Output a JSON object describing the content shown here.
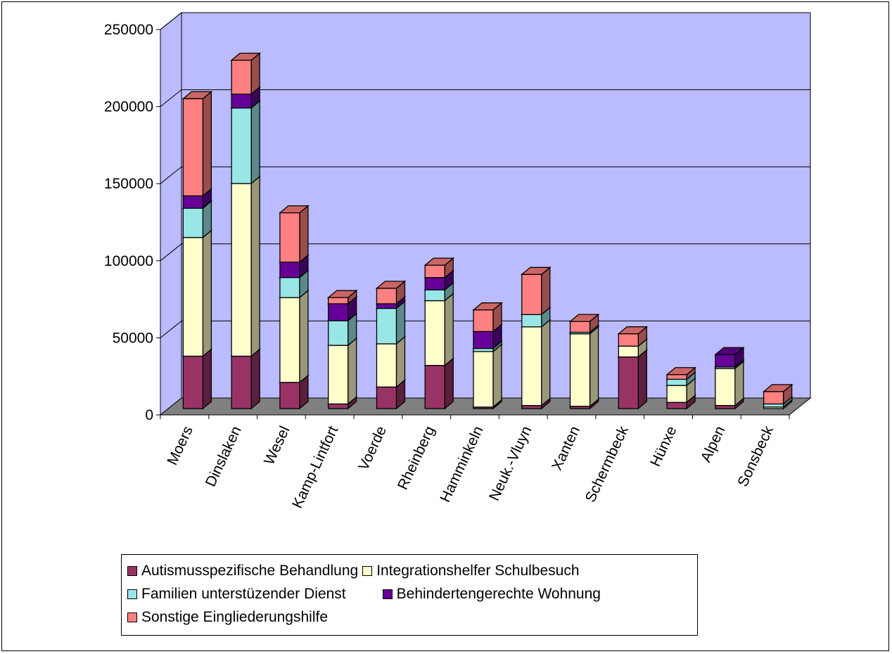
{
  "chart_data": {
    "type": "bar",
    "stacked": true,
    "three_d": true,
    "title": "",
    "xlabel": "",
    "ylabel": "",
    "ylim": [
      0,
      250000
    ],
    "yticks": [
      0,
      50000,
      100000,
      150000,
      200000,
      250000
    ],
    "grid": true,
    "legend_position": "bottom",
    "categories": [
      "Moers",
      "Dinslaken",
      "Wesel",
      "Kamp-Lintfort",
      "Voerde",
      "Rheinberg",
      "Hamminkeln",
      "Neuk.-Vluyn",
      "Xanten",
      "Schermbeck",
      "Hünxe",
      "Alpen",
      "Sonsbeck"
    ],
    "series": [
      {
        "name": "Autismusspezifische Behandlung",
        "color": "#993366",
        "values": [
          34000,
          34000,
          17000,
          3000,
          14000,
          28000,
          1000,
          2000,
          1500,
          33500,
          4000,
          2000,
          0
        ]
      },
      {
        "name": "Integrationshelfer Schulbesuch",
        "color": "#FFFFCC",
        "values": [
          77000,
          112000,
          55000,
          38000,
          28000,
          42000,
          36000,
          51000,
          47000,
          7000,
          11000,
          24000,
          1000
        ]
      },
      {
        "name": "Familien unterstüzender Dienst",
        "color": "#99E6E6",
        "values": [
          19000,
          49000,
          13000,
          16000,
          23000,
          7000,
          2000,
          8000,
          1000,
          0,
          4000,
          1000,
          2000
        ]
      },
      {
        "name": "Behindertengerechte Wohnung",
        "color": "#660099",
        "values": [
          8000,
          9000,
          10000,
          11000,
          3000,
          8000,
          11000,
          0,
          0,
          0,
          0,
          8000,
          0
        ]
      },
      {
        "name": "Sonstige Eingliederungshilfe",
        "color": "#FF8080",
        "values": [
          63000,
          22000,
          32000,
          4000,
          10000,
          8000,
          14000,
          26000,
          7000,
          8000,
          3000,
          0,
          8000
        ]
      }
    ]
  }
}
